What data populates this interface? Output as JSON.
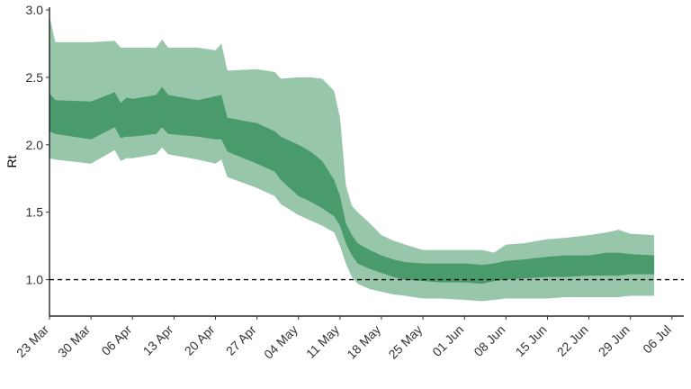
{
  "chart_data": {
    "type": "area",
    "title": "",
    "xlabel": "",
    "ylabel": "Rt",
    "ylim": [
      0.73,
      3.02
    ],
    "xlim": [
      "2020-03-23",
      "2020-07-08"
    ],
    "y_ticks": [
      1.0,
      1.5,
      2.0,
      2.5,
      3.0
    ],
    "y_tick_labels": [
      "1.0",
      "1.5",
      "2.0",
      "2.5",
      "3.0"
    ],
    "x_ticks": [
      "2020-03-23",
      "2020-03-30",
      "2020-04-06",
      "2020-04-13",
      "2020-04-20",
      "2020-04-27",
      "2020-05-04",
      "2020-05-11",
      "2020-05-18",
      "2020-05-25",
      "2020-06-01",
      "2020-06-08",
      "2020-06-15",
      "2020-06-22",
      "2020-06-29",
      "2020-07-06"
    ],
    "x_tick_labels": [
      "23 Mar",
      "30 Mar",
      "06 Apr",
      "13 Apr",
      "20 Apr",
      "27 Apr",
      "04 May",
      "11 May",
      "18 May",
      "25 May",
      "01 Jun",
      "08 Jun",
      "15 Jun",
      "22 Jun",
      "29 Jun",
      "06 Jul"
    ],
    "reference_line": {
      "y": 1.0,
      "style": "dashed",
      "color": "#000000"
    },
    "grid": false,
    "legend": "none",
    "colors": {
      "outer_band": "#98c6ab",
      "inner_band": "#4a9b6c"
    },
    "series": [
      {
        "x": [
          "2020-03-23",
          "2020-03-24",
          "2020-03-30",
          "2020-04-03",
          "2020-04-04",
          "2020-04-05",
          "2020-04-06",
          "2020-04-10",
          "2020-04-11",
          "2020-04-12",
          "2020-04-17",
          "2020-04-20",
          "2020-04-21",
          "2020-04-22",
          "2020-04-27",
          "2020-04-30",
          "2020-05-01",
          "2020-05-04",
          "2020-05-06",
          "2020-05-08",
          "2020-05-10",
          "2020-05-11",
          "2020-05-12",
          "2020-05-13",
          "2020-05-14",
          "2020-05-16",
          "2020-05-18",
          "2020-05-20",
          "2020-05-22",
          "2020-05-25",
          "2020-05-28",
          "2020-06-01",
          "2020-06-04",
          "2020-06-06",
          "2020-06-08",
          "2020-06-11",
          "2020-06-15",
          "2020-06-18",
          "2020-06-22",
          "2020-06-25",
          "2020-06-27",
          "2020-06-29",
          "2020-07-03"
        ],
        "lower": [
          1.9,
          1.89,
          1.86,
          1.96,
          1.88,
          1.9,
          1.9,
          1.93,
          1.98,
          1.93,
          1.89,
          1.86,
          1.89,
          1.76,
          1.68,
          1.62,
          1.56,
          1.48,
          1.44,
          1.4,
          1.35,
          1.25,
          1.12,
          1.02,
          0.97,
          0.93,
          0.91,
          0.89,
          0.88,
          0.86,
          0.86,
          0.85,
          0.84,
          0.85,
          0.86,
          0.86,
          0.86,
          0.87,
          0.87,
          0.87,
          0.87,
          0.88,
          0.88
        ]
      },
      {
        "x": [
          "2020-03-23",
          "2020-03-24",
          "2020-03-30",
          "2020-04-03",
          "2020-04-04",
          "2020-04-05",
          "2020-04-06",
          "2020-04-10",
          "2020-04-11",
          "2020-04-12",
          "2020-04-17",
          "2020-04-20",
          "2020-04-21",
          "2020-04-22",
          "2020-04-27",
          "2020-04-30",
          "2020-05-01",
          "2020-05-04",
          "2020-05-06",
          "2020-05-08",
          "2020-05-10",
          "2020-05-11",
          "2020-05-12",
          "2020-05-13",
          "2020-05-14",
          "2020-05-16",
          "2020-05-18",
          "2020-05-20",
          "2020-05-22",
          "2020-05-25",
          "2020-05-28",
          "2020-06-01",
          "2020-06-04",
          "2020-06-06",
          "2020-06-08",
          "2020-06-11",
          "2020-06-15",
          "2020-06-18",
          "2020-06-22",
          "2020-06-25",
          "2020-06-27",
          "2020-06-29",
          "2020-07-03"
        ],
        "lower": [
          2.1,
          2.08,
          2.04,
          2.13,
          2.05,
          2.06,
          2.06,
          2.08,
          2.13,
          2.08,
          2.06,
          2.04,
          2.04,
          1.95,
          1.86,
          1.8,
          1.74,
          1.62,
          1.58,
          1.53,
          1.47,
          1.4,
          1.27,
          1.18,
          1.12,
          1.08,
          1.05,
          1.02,
          1.0,
          0.99,
          0.98,
          0.98,
          0.97,
          0.99,
          1.0,
          1.01,
          1.02,
          1.02,
          1.03,
          1.03,
          1.03,
          1.04,
          1.04
        ],
        "upper": [
          2.38,
          2.33,
          2.32,
          2.39,
          2.31,
          2.35,
          2.34,
          2.37,
          2.43,
          2.37,
          2.33,
          2.36,
          2.37,
          2.2,
          2.16,
          2.1,
          2.06,
          2.0,
          1.95,
          1.88,
          1.74,
          1.62,
          1.42,
          1.33,
          1.27,
          1.22,
          1.18,
          1.15,
          1.13,
          1.12,
          1.12,
          1.12,
          1.11,
          1.12,
          1.14,
          1.15,
          1.17,
          1.18,
          1.18,
          1.2,
          1.2,
          1.19,
          1.18
        ]
      },
      {
        "x": [
          "2020-03-23",
          "2020-03-24",
          "2020-03-30",
          "2020-04-03",
          "2020-04-04",
          "2020-04-05",
          "2020-04-06",
          "2020-04-10",
          "2020-04-11",
          "2020-04-12",
          "2020-04-17",
          "2020-04-20",
          "2020-04-21",
          "2020-04-22",
          "2020-04-27",
          "2020-04-30",
          "2020-05-01",
          "2020-05-04",
          "2020-05-06",
          "2020-05-08",
          "2020-05-10",
          "2020-05-11",
          "2020-05-12",
          "2020-05-13",
          "2020-05-14",
          "2020-05-16",
          "2020-05-18",
          "2020-05-20",
          "2020-05-22",
          "2020-05-25",
          "2020-05-28",
          "2020-06-01",
          "2020-06-04",
          "2020-06-06",
          "2020-06-08",
          "2020-06-11",
          "2020-06-15",
          "2020-06-18",
          "2020-06-22",
          "2020-06-25",
          "2020-06-27",
          "2020-06-29",
          "2020-07-03"
        ],
        "upper": [
          2.95,
          2.76,
          2.76,
          2.77,
          2.72,
          2.72,
          2.72,
          2.72,
          2.78,
          2.72,
          2.72,
          2.7,
          2.75,
          2.55,
          2.56,
          2.54,
          2.49,
          2.5,
          2.5,
          2.49,
          2.4,
          2.2,
          1.7,
          1.55,
          1.5,
          1.42,
          1.33,
          1.29,
          1.26,
          1.22,
          1.22,
          1.22,
          1.22,
          1.2,
          1.26,
          1.27,
          1.3,
          1.31,
          1.33,
          1.35,
          1.37,
          1.34,
          1.33
        ]
      }
    ]
  }
}
